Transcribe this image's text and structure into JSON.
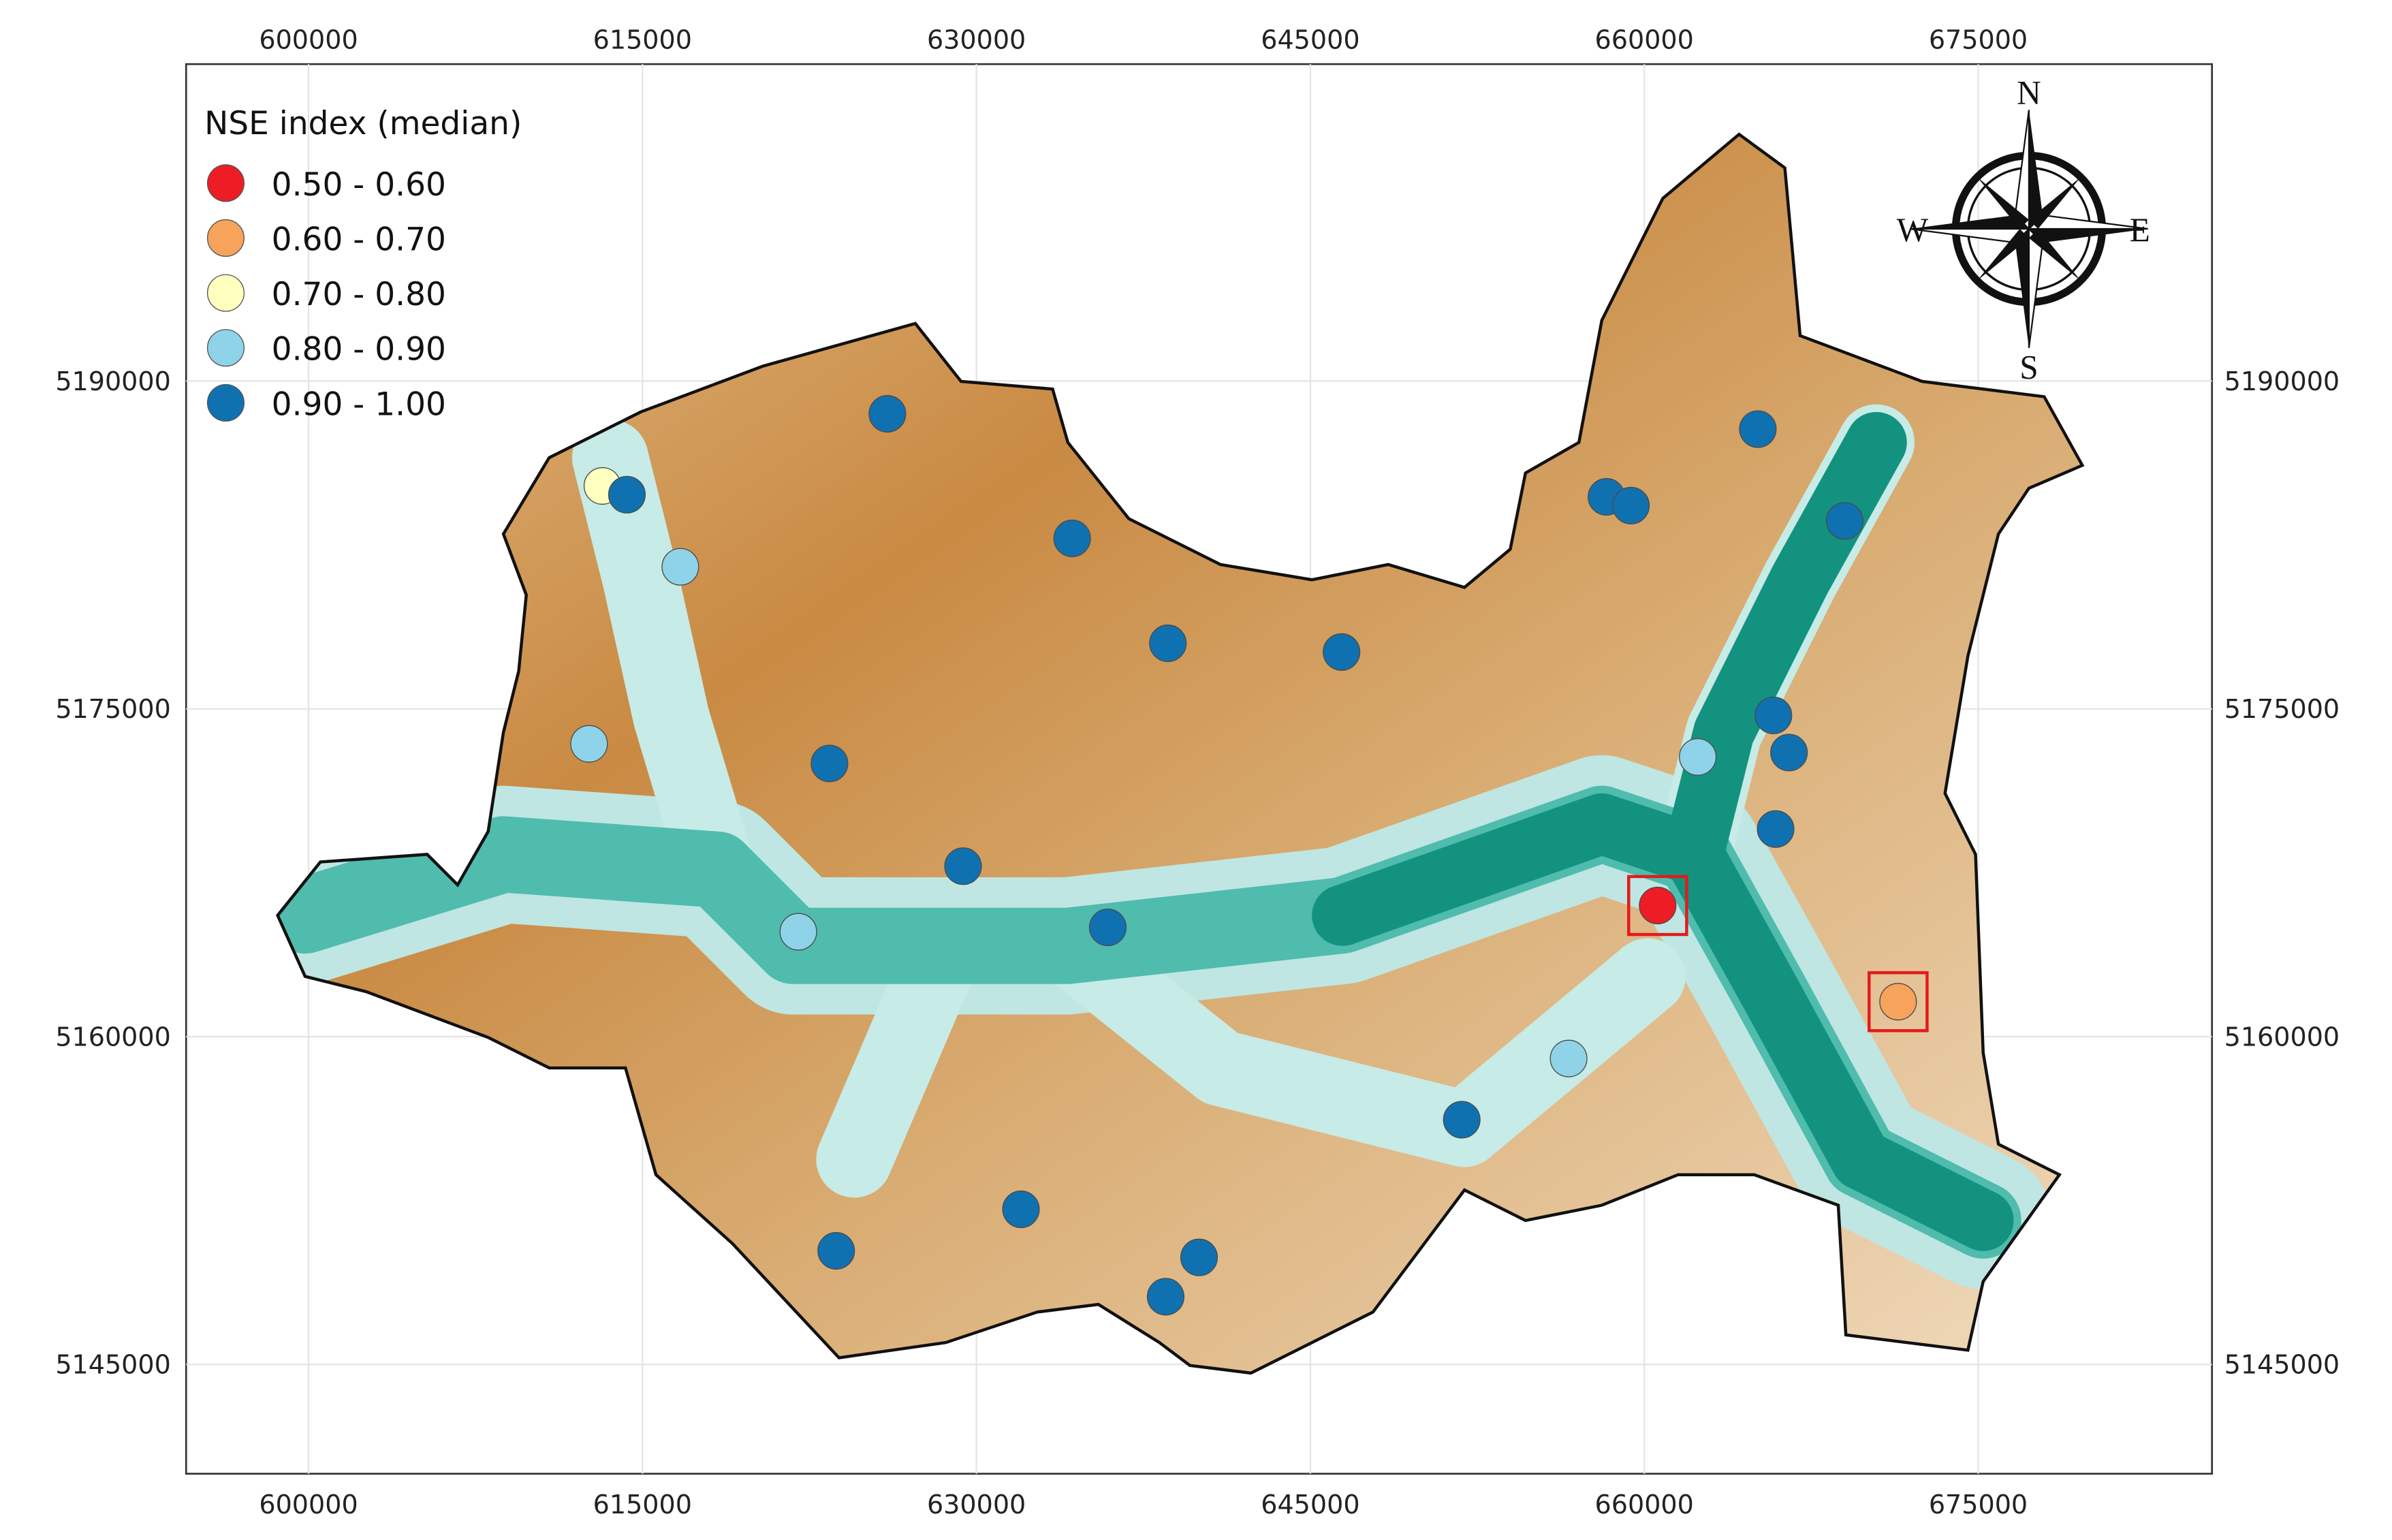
{
  "chart_data": {
    "type": "map",
    "legend_title": "NSE index (median)",
    "xlim": [
      594500,
      685500
    ],
    "ylim": [
      5140000,
      5204500
    ],
    "xticks": [
      600000,
      615000,
      630000,
      645000,
      660000,
      675000
    ],
    "yticks": [
      5145000,
      5160000,
      5175000,
      5190000
    ],
    "grid": true,
    "compass": {
      "north": "N",
      "east": "E",
      "south": "S",
      "west": "W"
    },
    "series": [
      {
        "name": "0.50 - 0.60",
        "color": "#ee1c25",
        "highlight": true,
        "x": [
          660600
        ],
        "y": [
          5166000
        ]
      },
      {
        "name": "0.60 - 0.70",
        "color": "#f7a35c",
        "highlight": true,
        "x": [
          671400
        ],
        "y": [
          5161600
        ]
      },
      {
        "name": "0.70 - 0.80",
        "color": "#ffffbf",
        "x": [
          613200
        ],
        "y": [
          5185200
        ]
      },
      {
        "name": "0.80 - 0.90",
        "color": "#8fd3e8",
        "x": [
          616700,
          612600,
          622000,
          662400,
          656600
        ],
        "y": [
          5181500,
          5173400,
          5164800,
          5172800,
          5159000
        ]
      },
      {
        "name": "0.90 - 1.00",
        "color": "#1071b0",
        "x": [
          614300,
          626000,
          634300,
          638600,
          646400,
          665100,
          658300,
          659400,
          669000,
          665800,
          666500,
          665900,
          623400,
          629400,
          635900,
          651800,
          632000,
          623700,
          640000,
          638500
        ],
        "y": [
          5184800,
          5188500,
          5182800,
          5178000,
          5177600,
          5187800,
          5184700,
          5184300,
          5183600,
          5174700,
          5173000,
          5169500,
          5172500,
          5167800,
          5165000,
          5156200,
          5152100,
          5150200,
          5149900,
          5148100
        ]
      }
    ]
  }
}
